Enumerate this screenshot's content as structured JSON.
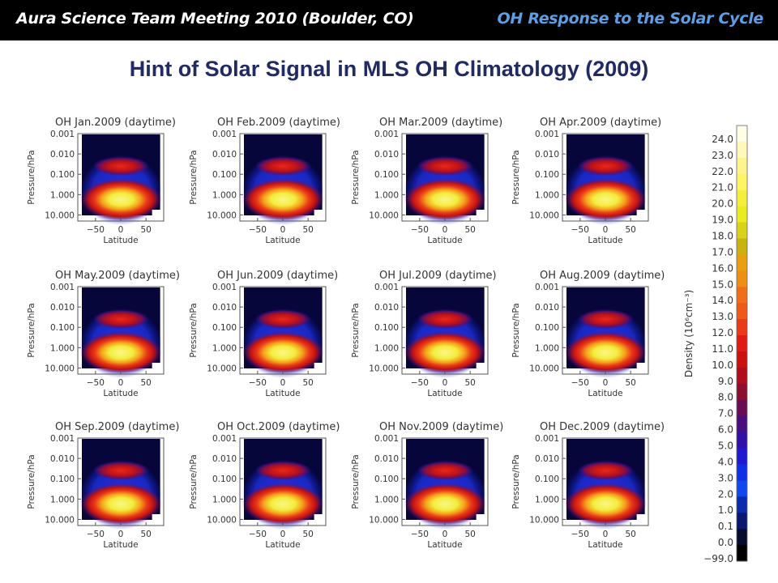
{
  "header": {
    "left_text": "Aura Science Team Meeting 2010 (Boulder, CO)",
    "right_text": "OH Response to the Solar Cycle"
  },
  "slide_title": "Hint of Solar Signal in MLS OH Climatology (2009)",
  "chart_data": {
    "type": "heatmap",
    "panels": [
      {
        "title": "OH Jan.2009 (daytime)",
        "month": "Jan"
      },
      {
        "title": "OH Feb.2009 (daytime)",
        "month": "Feb"
      },
      {
        "title": "OH Mar.2009 (daytime)",
        "month": "Mar"
      },
      {
        "title": "OH Apr.2009 (daytime)",
        "month": "Apr"
      },
      {
        "title": "OH May.2009 (daytime)",
        "month": "May"
      },
      {
        "title": "OH Jun.2009 (daytime)",
        "month": "Jun"
      },
      {
        "title": "OH Jul.2009 (daytime)",
        "month": "Jul"
      },
      {
        "title": "OH Aug.2009 (daytime)",
        "month": "Aug"
      },
      {
        "title": "OH Sep.2009 (daytime)",
        "month": "Sep"
      },
      {
        "title": "OH Oct.2009 (daytime)",
        "month": "Oct"
      },
      {
        "title": "OH Nov.2009 (daytime)",
        "month": "Nov"
      },
      {
        "title": "OH Dec.2009 (daytime)",
        "month": "Dec"
      }
    ],
    "xlabel": "Latitude",
    "ylabel": "Pressure/hPa",
    "xticks": [
      -50,
      0,
      50
    ],
    "xtick_labels": [
      "−50",
      "0",
      "50"
    ],
    "yticks": [
      "0.001",
      "0.010",
      "0.100",
      "1.000",
      "10.000"
    ],
    "xlim": [
      -85,
      85
    ],
    "ylim": [
      20,
      0.001
    ],
    "yscale": "log",
    "colorbar": {
      "label": "Density (10⁶cm⁻³)",
      "ticks": [
        "24.0",
        "23.0",
        "22.0",
        "21.0",
        "20.0",
        "19.0",
        "18.0",
        "17.0",
        "16.0",
        "15.0",
        "14.0",
        "13.0",
        "12.0",
        "11.0",
        "10.0",
        "9.0",
        "8.0",
        "7.0",
        "6.0",
        "5.0",
        "4.0",
        "3.0",
        "2.0",
        "1.0",
        "0.1",
        "0.0",
        "−99.0"
      ],
      "colors": [
        "#fffde6",
        "#fff8b8",
        "#fff38a",
        "#fff560",
        "#f5ef3a",
        "#eaec20",
        "#d9d216",
        "#c9b310",
        "#e9a00e",
        "#ee8f12",
        "#f26e16",
        "#ef5a18",
        "#ea3a18",
        "#e31a14",
        "#cc1010",
        "#b00e1a",
        "#8c0d2e",
        "#6a0c55",
        "#4a0d80",
        "#3010a8",
        "#1f1ad0",
        "#1030e8",
        "#0d48f0",
        "#0a2ab0",
        "#081870",
        "#050c30",
        "#000000"
      ]
    },
    "density_peaks": {
      "mesospheric_band_pressure_hPa": 0.04,
      "stratospheric_peak_pressure_hPa": 3,
      "peak_density_range": [
        20,
        24
      ]
    }
  }
}
